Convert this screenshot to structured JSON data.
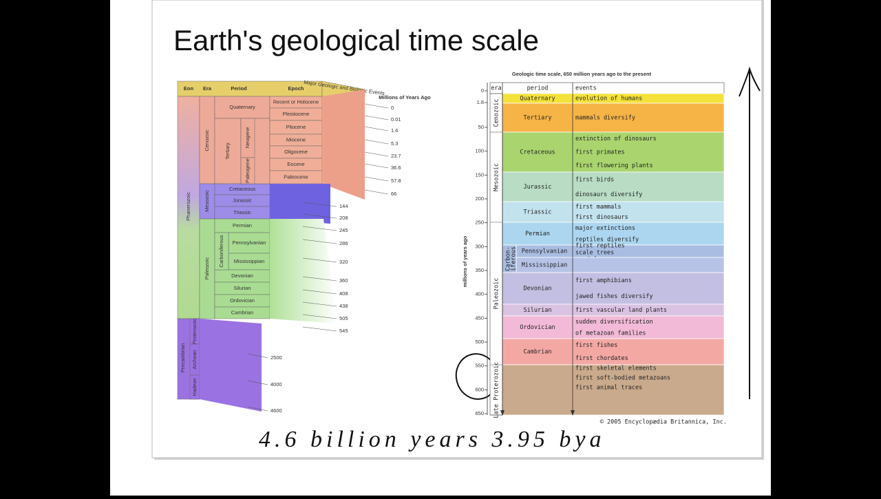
{
  "title": "Earth's geological time scale",
  "left_chart": {
    "headers": {
      "eon": "Eon",
      "era": "Era",
      "period": "Period",
      "epoch": "Epoch",
      "events": "Major Geologic and Biologic Events",
      "ages": "Millions of Years Ago"
    },
    "eons": [
      "Phanerozoic",
      "Precambrian"
    ],
    "eras": [
      "Cenozoic",
      "Mesozoic",
      "Paleozoic",
      "Proterozoic",
      "Archean",
      "Hadean"
    ],
    "subperiods": [
      "Neogene",
      "Paleogene",
      "Carboniferous"
    ],
    "periods": [
      "Quaternary",
      "Tertiary",
      "Cretaceous",
      "Jurassic",
      "Triassic",
      "Permian",
      "Pennsylvanian",
      "Mississippian",
      "Devonian",
      "Silurian",
      "Ordovician",
      "Cambrian"
    ],
    "epochs": [
      "Recent or Holocene",
      "Pleistocene",
      "Pliocene",
      "Miocene",
      "Oligocene",
      "Eocene",
      "Paleocene"
    ],
    "ages": [
      0,
      0.01,
      1.6,
      5.3,
      23.7,
      36.6,
      57.8,
      66,
      144,
      208,
      245,
      286,
      320,
      360,
      408,
      438,
      505,
      545,
      2500,
      4000,
      4600
    ]
  },
  "right_chart": {
    "title": "Geologic time scale, 650 million years ago to the present",
    "y_label": "millions of years ago",
    "headers": {
      "era": "era",
      "period": "period",
      "events": "events"
    },
    "eras": [
      "Cenozoic",
      "Mesozoic",
      "Paleozoic",
      "Late Proterozoic"
    ],
    "carboniferous": [
      "Carbon-",
      "iferous"
    ],
    "periods": [
      {
        "name": "Quaternary",
        "color": "#f4e23a",
        "events": [
          "evolution of humans"
        ]
      },
      {
        "name": "Tertiary",
        "color": "#f6b446",
        "events": [
          "mammals diversify"
        ]
      },
      {
        "name": "Cretaceous",
        "color": "#a9d46e",
        "events": [
          "extinction of dinosaurs",
          "first primates",
          "first flowering plants"
        ]
      },
      {
        "name": "Jurassic",
        "color": "#b8dcc4",
        "events": [
          "first birds",
          "dinosaurs diversify"
        ]
      },
      {
        "name": "Triassic",
        "color": "#c2e2ee",
        "events": [
          "first mammals",
          "first dinosaurs"
        ]
      },
      {
        "name": "Permian",
        "color": "#acd6ef",
        "events": [
          "major extinctions",
          "reptiles diversify"
        ]
      },
      {
        "name": "Pennsylvanian",
        "color": "#a9bde2",
        "events": [
          "first reptiles",
          "scale trees",
          "seed ferns"
        ]
      },
      {
        "name": "Mississippian",
        "color": "#b7c3e6",
        "events": []
      },
      {
        "name": "Devonian",
        "color": "#c3bfe2",
        "events": [
          "first amphibians",
          "jawed fishes diversify"
        ]
      },
      {
        "name": "Silurian",
        "color": "#dac2e2",
        "events": [
          "first vascular land plants"
        ]
      },
      {
        "name": "Ordovician",
        "color": "#f2bad6",
        "events": [
          "sudden diversification",
          "of metazoan families"
        ]
      },
      {
        "name": "Cambrian",
        "color": "#f4a8a4",
        "events": [
          "first fishes",
          "first chordates"
        ]
      }
    ],
    "proterozoic": {
      "color": "#c9aa8c",
      "events": [
        "first skeletal elements",
        "first soft-bodied metazoans",
        "first animal traces"
      ]
    },
    "yticks": [
      0,
      1.8,
      50,
      100,
      150,
      200,
      250,
      300,
      350,
      400,
      450,
      500,
      550,
      600,
      650
    ],
    "credit": "© 2005 Encyclopædia Britannica, Inc."
  },
  "handwriting": "4.6 billion years   3.95 bya"
}
